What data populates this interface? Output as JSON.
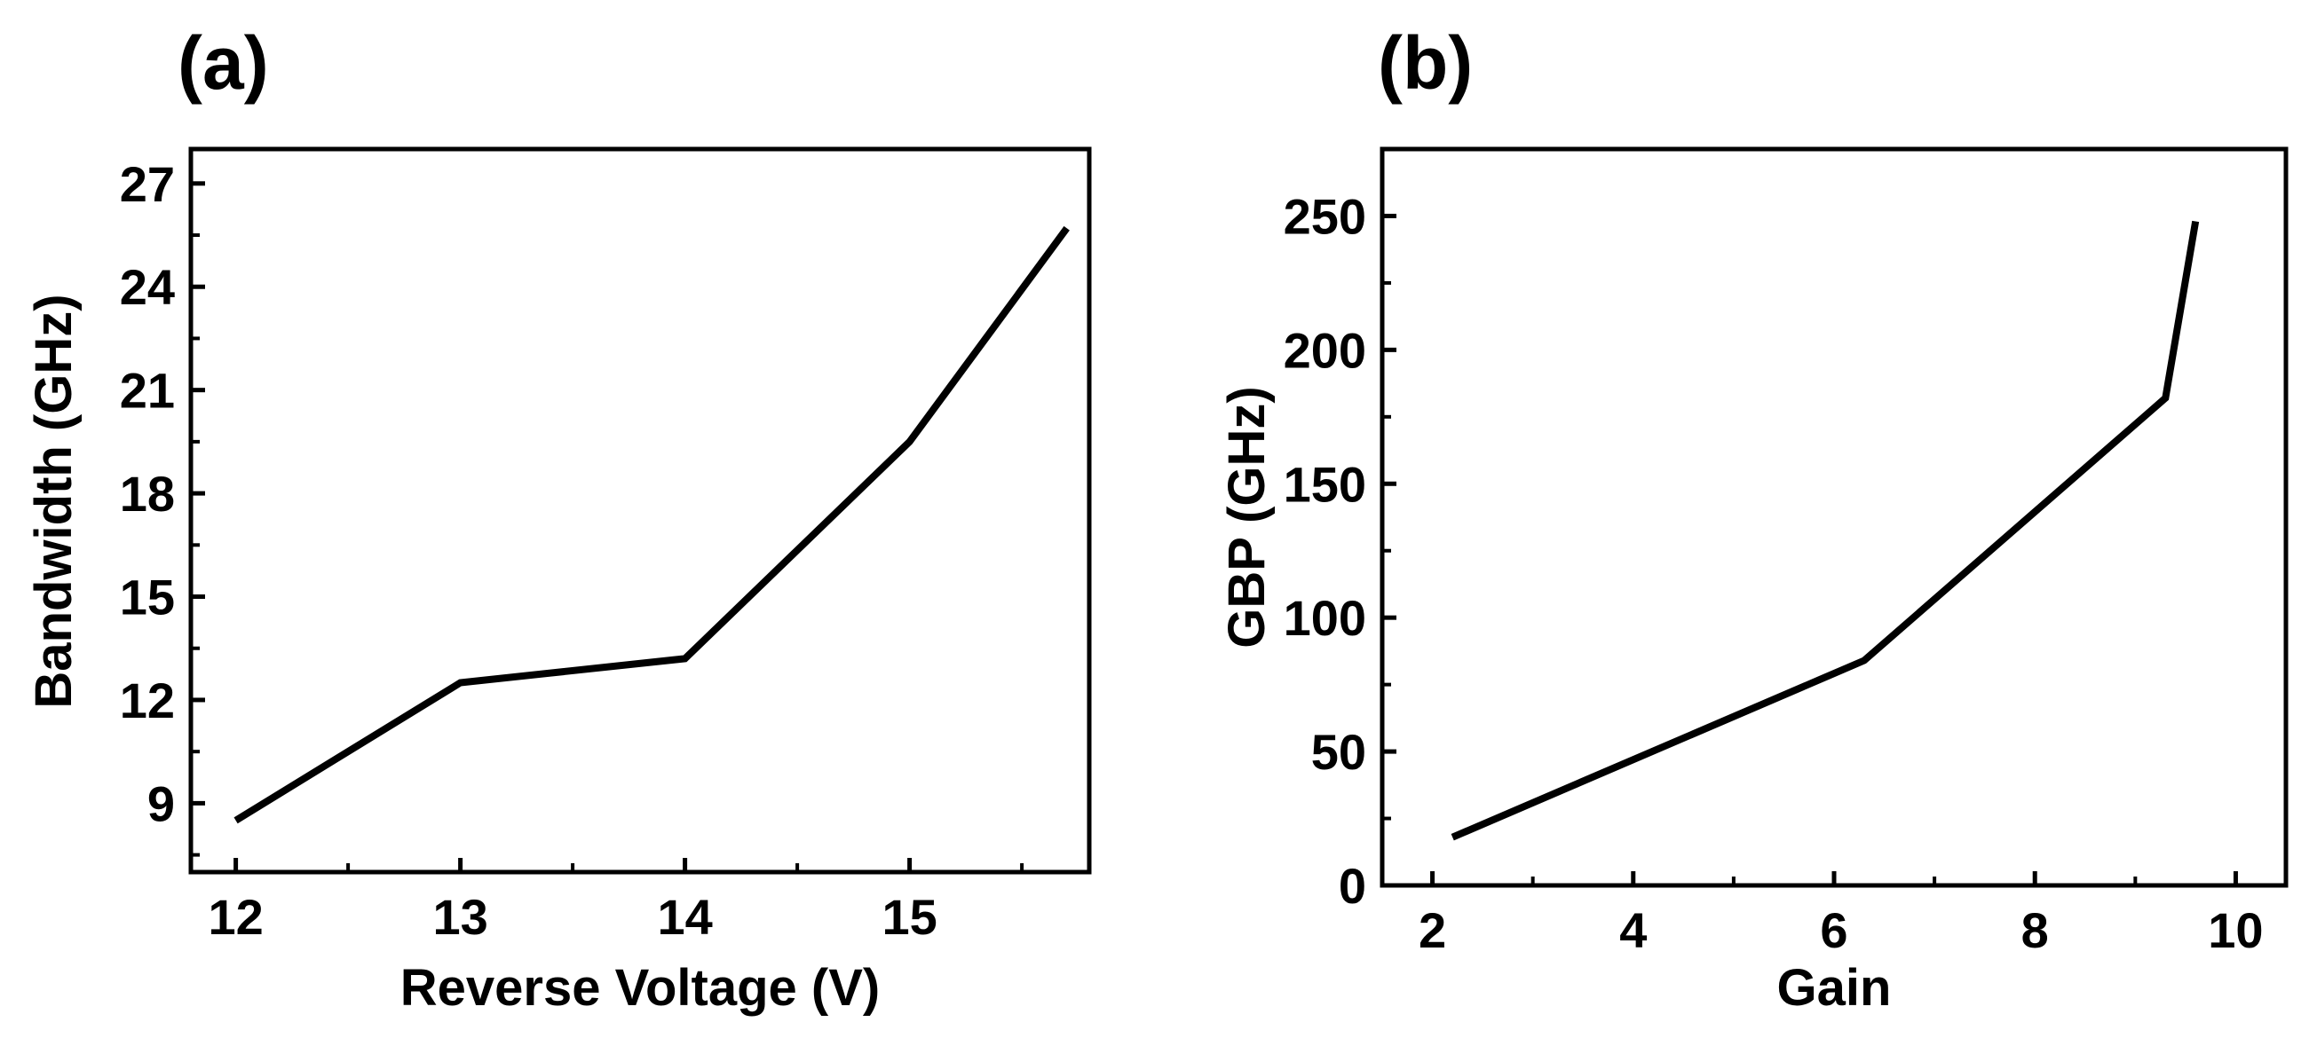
{
  "chart_data": [
    {
      "type": "line",
      "panel_label": "(a)",
      "title": "",
      "xlabel": "Reverse Voltage (V)",
      "ylabel": "Bandwidth (GHz)",
      "xlim": [
        11.8,
        15.8
      ],
      "ylim": [
        7.0,
        28.0
      ],
      "xticks": [
        12,
        13,
        14,
        15
      ],
      "yticks": [
        9,
        12,
        15,
        18,
        21,
        24,
        27
      ],
      "x_minor_step": 0.5,
      "y_minor_step": 1.5,
      "grid": false,
      "series": [
        {
          "name": "Bandwidth",
          "x": [
            12.0,
            13.0,
            14.0,
            15.0,
            15.7
          ],
          "y": [
            8.5,
            12.5,
            13.2,
            19.5,
            25.7
          ]
        }
      ]
    },
    {
      "type": "line",
      "panel_label": "(b)",
      "title": "",
      "xlabel": "Gain",
      "ylabel": "GBP (GHz)",
      "xlim": [
        1.5,
        10.5
      ],
      "ylim": [
        0,
        275
      ],
      "xticks": [
        2,
        4,
        6,
        8,
        10
      ],
      "yticks": [
        0,
        50,
        100,
        150,
        200,
        250
      ],
      "x_minor_step": 1,
      "y_minor_step": 25,
      "grid": false,
      "series": [
        {
          "name": "GBP",
          "x": [
            2.2,
            6.3,
            9.3,
            9.6
          ],
          "y": [
            18,
            84,
            182,
            248
          ]
        }
      ]
    }
  ]
}
